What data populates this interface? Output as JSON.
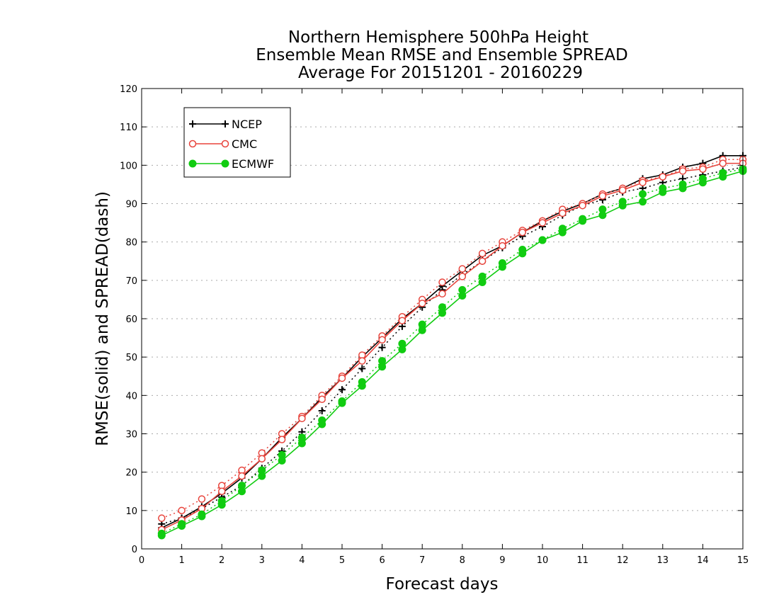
{
  "chart_data": {
    "type": "line",
    "title": [
      "Northern Hemisphere 500hPa Height",
      "Ensemble Mean RMSE and Ensemble SPREAD",
      "Average For 20151201 - 20160229"
    ],
    "xlabel": "Forecast days",
    "ylabel": "RMSE(solid) and SPREAD(dash)",
    "xlim": [
      0,
      15
    ],
    "ylim": [
      0,
      120
    ],
    "xticks": [
      0,
      1,
      2,
      3,
      4,
      5,
      6,
      7,
      8,
      9,
      10,
      11,
      12,
      13,
      14,
      15
    ],
    "yticks": [
      0,
      10,
      20,
      30,
      40,
      50,
      60,
      70,
      80,
      90,
      100,
      110,
      120
    ],
    "grid": true,
    "legend_position": "top-left",
    "x": [
      0.5,
      1,
      1.5,
      2,
      2.5,
      3,
      3.5,
      4,
      4.5,
      5,
      5.5,
      6,
      6.5,
      7,
      7.5,
      8,
      8.5,
      9,
      9.5,
      10,
      10.5,
      11,
      11.5,
      12,
      12.5,
      13,
      13.5,
      14,
      14.5,
      15
    ],
    "series": [
      {
        "name": "NCEP",
        "color": "#000000",
        "marker": "plus",
        "rmse": [
          5.5,
          8.0,
          11.0,
          14.5,
          18.5,
          23.5,
          29.0,
          34.0,
          39.5,
          44.5,
          50.0,
          55.0,
          60.0,
          64.0,
          68.5,
          72.5,
          76.5,
          79.0,
          82.5,
          85.5,
          88.0,
          90.0,
          92.5,
          94.0,
          96.5,
          97.5,
          99.5,
          100.5,
          102.5,
          102.5
        ],
        "spread": [
          6.5,
          8.0,
          10.5,
          13.5,
          16.5,
          21.0,
          25.5,
          30.5,
          36.0,
          41.5,
          47.0,
          52.5,
          58.0,
          63.0,
          67.5,
          71.5,
          75.0,
          78.5,
          81.5,
          84.0,
          87.0,
          89.5,
          91.0,
          93.0,
          94.0,
          95.5,
          96.5,
          97.5,
          98.5,
          99.5
        ]
      },
      {
        "name": "CMC",
        "color": "#e8443c",
        "marker": "open-circle",
        "rmse": [
          5.0,
          7.5,
          10.5,
          15.0,
          19.0,
          23.5,
          28.5,
          34.0,
          39.0,
          44.5,
          49.0,
          54.5,
          59.5,
          64.0,
          66.5,
          71.0,
          75.0,
          79.0,
          82.5,
          85.0,
          87.5,
          89.5,
          92.0,
          93.5,
          95.5,
          97.0,
          98.5,
          99.0,
          100.5,
          100.5
        ],
        "spread": [
          8.0,
          10.0,
          13.0,
          16.5,
          20.5,
          25.0,
          30.0,
          34.5,
          40.0,
          45.0,
          50.5,
          55.5,
          60.5,
          65.0,
          69.5,
          73.0,
          77.0,
          80.0,
          83.0,
          85.5,
          88.5,
          90.0,
          92.5,
          94.0,
          96.0,
          97.0,
          99.0,
          99.5,
          101.5,
          101.5
        ]
      },
      {
        "name": "ECMWF",
        "color": "#11cc11",
        "marker": "filled-circle",
        "rmse": [
          3.5,
          6.0,
          8.5,
          11.5,
          15.0,
          19.0,
          23.0,
          27.5,
          32.5,
          38.0,
          42.5,
          47.5,
          52.0,
          57.0,
          61.5,
          66.0,
          69.5,
          73.5,
          77.0,
          80.5,
          82.5,
          85.5,
          87.0,
          89.5,
          90.5,
          93.0,
          94.0,
          95.5,
          97.0,
          98.5
        ],
        "spread": [
          4.0,
          6.5,
          9.0,
          12.5,
          16.5,
          20.5,
          24.5,
          29.0,
          33.5,
          38.5,
          43.5,
          49.0,
          53.5,
          58.5,
          63.0,
          67.5,
          71.0,
          74.5,
          78.0,
          80.5,
          83.5,
          86.0,
          88.5,
          90.5,
          92.5,
          94.0,
          95.0,
          96.5,
          98.0,
          99.0
        ]
      }
    ]
  }
}
